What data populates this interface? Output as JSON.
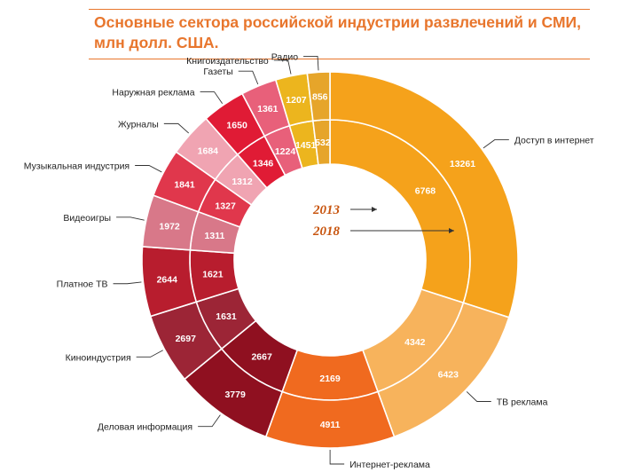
{
  "title": "Основные сектора российской индустрии развлечений и СМИ, млн долл. США.",
  "palette": {
    "accent": "#e8762d",
    "inner_label_2013": "#c8550f",
    "inner_label_2018": "#c8550f"
  },
  "chart_data": {
    "type": "donut",
    "title": "Основные сектора российской индустрии развлечений и СМИ, млн долл. США.",
    "inner_ring_label": "2013",
    "outer_ring_label": "2018",
    "series": [
      {
        "name": "2013",
        "ring": "inner"
      },
      {
        "name": "2018",
        "ring": "outer"
      }
    ],
    "sectors": [
      {
        "name": "Доступ в интернет",
        "v2013": 6768,
        "v2018": 13261,
        "color": "#f5a21b"
      },
      {
        "name": "ТВ реклама",
        "v2013": 4342,
        "v2018": 6423,
        "color": "#f7b35c"
      },
      {
        "name": "Интернет-реклама",
        "v2013": 2169,
        "v2018": 4911,
        "color": "#f06a1f"
      },
      {
        "name": "Деловая информация",
        "v2013": 2667,
        "v2018": 3779,
        "color": "#8f1020"
      },
      {
        "name": "Киноиндустрия",
        "v2013": 1631,
        "v2018": 2697,
        "color": "#9c2536"
      },
      {
        "name": "Платное ТВ",
        "v2013": 1621,
        "v2018": 2644,
        "color": "#b81d2e"
      },
      {
        "name": "Видеоигры",
        "v2013": 1311,
        "v2018": 1972,
        "color": "#d87889"
      },
      {
        "name": "Музыкальная индустрия",
        "v2013": 1327,
        "v2018": 1841,
        "color": "#e0374c"
      },
      {
        "name": "Журналы",
        "v2013": 1312,
        "v2018": 1684,
        "color": "#f0a4b2"
      },
      {
        "name": "Наружная реклама",
        "v2013": 1346,
        "v2018": 1650,
        "color": "#e01b35"
      },
      {
        "name": "Газеты",
        "v2013": 1224,
        "v2018": 1361,
        "color": "#e8607a"
      },
      {
        "name": "Книгоиздательство",
        "v2013": 1451,
        "v2018": 1207,
        "color": "#ecb51e"
      },
      {
        "name": "Радио",
        "v2013": 532,
        "v2018": 856,
        "color": "#e6a52a"
      }
    ]
  }
}
